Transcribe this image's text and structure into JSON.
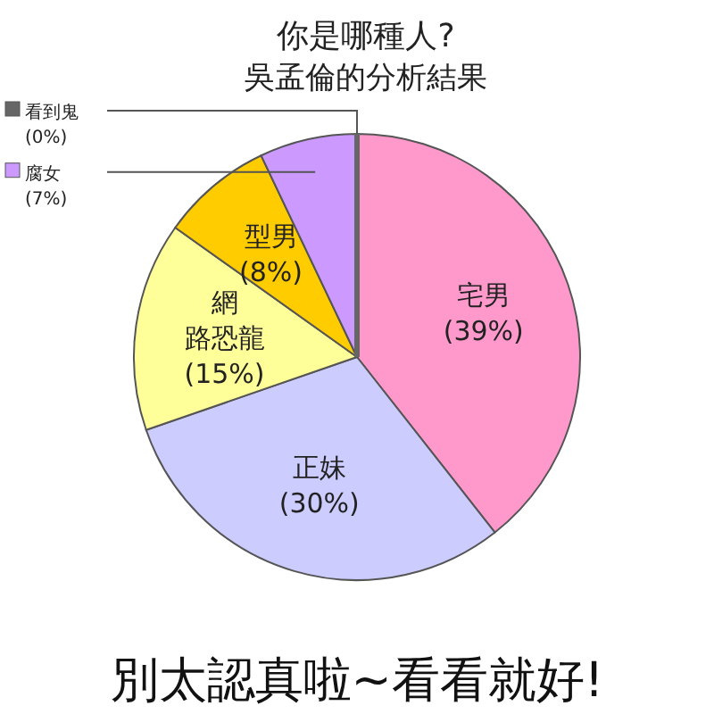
{
  "chart_data": {
    "type": "pie",
    "title": "你是哪種人?",
    "subtitle": "吳孟倫的分析結果",
    "categories": [
      "宅男",
      "正妹",
      "網路恐龍",
      "型男",
      "腐女",
      "看到鬼"
    ],
    "values": [
      39,
      30,
      15,
      8,
      7,
      0
    ],
    "value_labels": [
      "(39%)",
      "(30%)",
      "(15%)",
      "(8%)",
      "(7%)",
      "(0%)"
    ],
    "colors": [
      "#ff99cc",
      "#ccccff",
      "#ffff99",
      "#ffcc00",
      "#cc99ff",
      "#666666"
    ],
    "annotations": [
      "別太認真啦~看看就好!"
    ]
  }
}
